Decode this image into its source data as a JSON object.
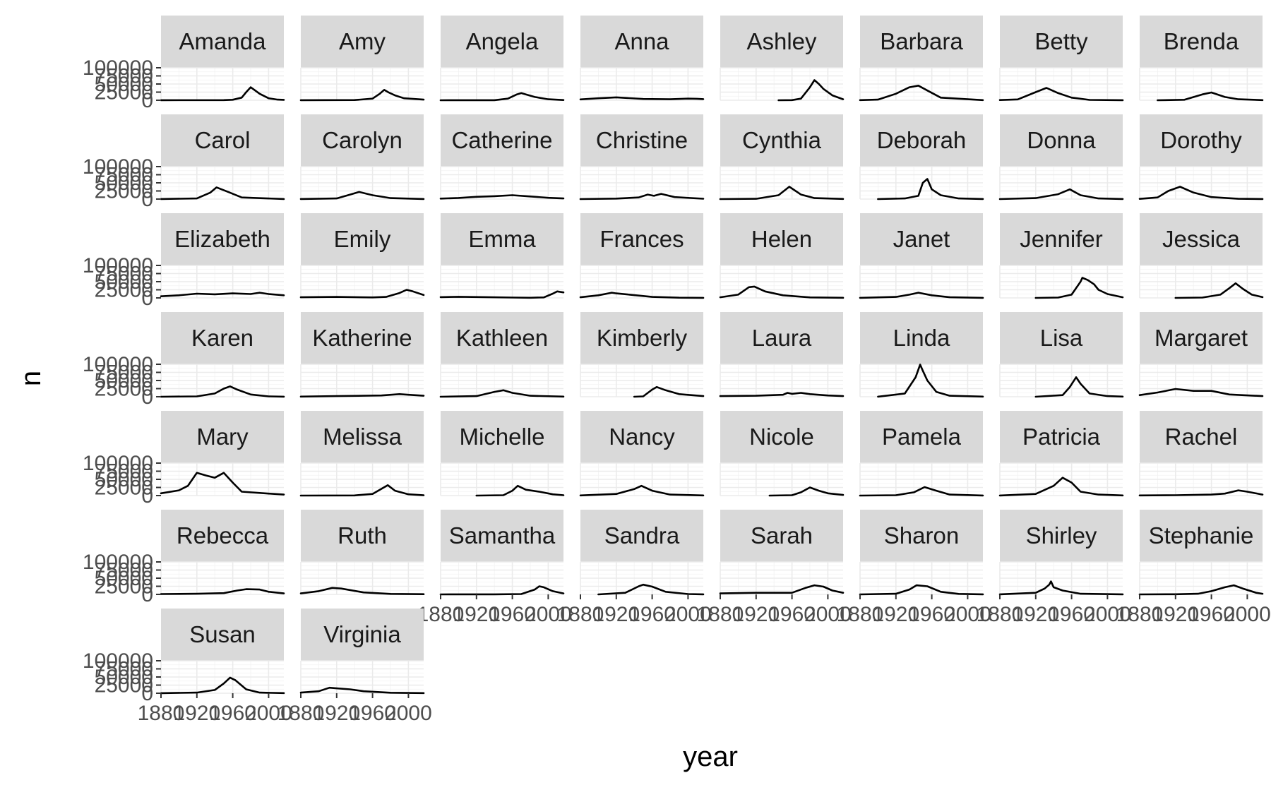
{
  "chart_data": {
    "type": "line",
    "layout": "facet_wrap",
    "ncol": 8,
    "xlabel": "year",
    "ylabel": "n",
    "xlim": [
      1880,
      2017
    ],
    "ylim": [
      0,
      100000
    ],
    "x_ticks": [
      1880,
      1920,
      1960,
      2000
    ],
    "x_tick_labels": [
      "1880",
      "1920",
      "1960",
      "2000"
    ],
    "y_ticks": [
      0,
      25000,
      50000,
      75000,
      100000
    ],
    "y_tick_labels": [
      "0",
      "25000",
      "50000",
      "75000",
      "100000"
    ],
    "grid": true,
    "legend": "none",
    "line_color": "#000000",
    "strip_fill": "#d9d9d9",
    "facets": [
      {
        "name": "Amanda",
        "x": [
          1880,
          1950,
          1960,
          1970,
          1975,
          1980,
          1985,
          1990,
          2000,
          2010,
          2017
        ],
        "y": [
          200,
          400,
          1500,
          8000,
          25000,
          40000,
          30000,
          20000,
          6000,
          2000,
          1200
        ]
      },
      {
        "name": "Amy",
        "x": [
          1880,
          1940,
          1960,
          1968,
          1973,
          1978,
          1985,
          1995,
          2017
        ],
        "y": [
          200,
          600,
          5000,
          20000,
          32000,
          24000,
          15000,
          6000,
          2000
        ]
      },
      {
        "name": "Angela",
        "x": [
          1880,
          1940,
          1955,
          1965,
          1970,
          1975,
          1985,
          2000,
          2017
        ],
        "y": [
          100,
          300,
          5000,
          18000,
          22000,
          18000,
          10000,
          3000,
          600
        ]
      },
      {
        "name": "Anna",
        "x": [
          1880,
          1900,
          1920,
          1950,
          1980,
          2000,
          2010,
          2017
        ],
        "y": [
          2500,
          6000,
          9000,
          4000,
          3000,
          5000,
          4500,
          3500
        ]
      },
      {
        "name": "Ashley",
        "x": [
          1945,
          1960,
          1970,
          1980,
          1985,
          1990,
          1995,
          2005,
          2017
        ],
        "y": [
          100,
          500,
          5000,
          40000,
          62000,
          50000,
          35000,
          15000,
          3000
        ]
      },
      {
        "name": "Barbara",
        "x": [
          1880,
          1900,
          1920,
          1935,
          1945,
          1955,
          1970,
          2017
        ],
        "y": [
          500,
          2000,
          20000,
          40000,
          45000,
          30000,
          8000,
          500
        ]
      },
      {
        "name": "Betty",
        "x": [
          1880,
          1900,
          1920,
          1932,
          1945,
          1960,
          1980,
          2017
        ],
        "y": [
          600,
          2500,
          25000,
          38000,
          22000,
          8000,
          1000,
          300
        ]
      },
      {
        "name": "Brenda",
        "x": [
          1900,
          1930,
          1950,
          1960,
          1975,
          1990,
          2017
        ],
        "y": [
          100,
          1500,
          18000,
          24000,
          10000,
          3000,
          400
        ]
      },
      {
        "name": "Carol",
        "x": [
          1880,
          1920,
          1935,
          1942,
          1955,
          1970,
          2017
        ],
        "y": [
          200,
          2000,
          20000,
          36000,
          22000,
          5000,
          300
        ]
      },
      {
        "name": "Carolyn",
        "x": [
          1880,
          1920,
          1935,
          1945,
          1960,
          1980,
          2017
        ],
        "y": [
          200,
          2000,
          14000,
          22000,
          12000,
          3000,
          300
        ]
      },
      {
        "name": "Catherine",
        "x": [
          1880,
          1900,
          1920,
          1940,
          1960,
          1980,
          2000,
          2017
        ],
        "y": [
          1500,
          3500,
          7000,
          9000,
          12000,
          8000,
          4000,
          2000
        ]
      },
      {
        "name": "Christine",
        "x": [
          1880,
          1920,
          1945,
          1955,
          1962,
          1970,
          1985,
          2017
        ],
        "y": [
          100,
          1500,
          5000,
          14000,
          10000,
          16000,
          6000,
          1000
        ]
      },
      {
        "name": "Cynthia",
        "x": [
          1880,
          1920,
          1945,
          1957,
          1970,
          1985,
          2017
        ],
        "y": [
          100,
          800,
          12000,
          38000,
          14000,
          3000,
          400
        ]
      },
      {
        "name": "Deborah",
        "x": [
          1900,
          1930,
          1945,
          1950,
          1955,
          1960,
          1970,
          1990,
          2017
        ],
        "y": [
          100,
          2000,
          10000,
          50000,
          62000,
          30000,
          12000,
          2000,
          300
        ]
      },
      {
        "name": "Donna",
        "x": [
          1880,
          1920,
          1945,
          1958,
          1970,
          1990,
          2017
        ],
        "y": [
          100,
          3000,
          15000,
          30000,
          12000,
          2000,
          200
        ]
      },
      {
        "name": "Dorothy",
        "x": [
          1880,
          1900,
          1912,
          1925,
          1940,
          1960,
          1990,
          2017
        ],
        "y": [
          600,
          5000,
          25000,
          38000,
          20000,
          6000,
          800,
          200
        ]
      },
      {
        "name": "Elizabeth",
        "x": [
          1880,
          1900,
          1920,
          1940,
          1960,
          1980,
          1990,
          2000,
          2017
        ],
        "y": [
          5000,
          8000,
          13000,
          11000,
          14000,
          12000,
          16000,
          12000,
          8000
        ]
      },
      {
        "name": "Emily",
        "x": [
          1880,
          1920,
          1960,
          1975,
          1990,
          1998,
          2005,
          2017
        ],
        "y": [
          2000,
          3000,
          1500,
          3000,
          15000,
          25000,
          20000,
          9000
        ]
      },
      {
        "name": "Emma",
        "x": [
          1880,
          1900,
          1930,
          1960,
          1980,
          1995,
          2005,
          2010,
          2017
        ],
        "y": [
          2500,
          3500,
          2500,
          1000,
          500,
          1500,
          13000,
          20000,
          17000
        ]
      },
      {
        "name": "Frances",
        "x": [
          1880,
          1900,
          1915,
          1920,
          1935,
          1960,
          1990,
          2017
        ],
        "y": [
          2000,
          8000,
          16000,
          14000,
          10000,
          3000,
          600,
          200
        ]
      },
      {
        "name": "Helen",
        "x": [
          1880,
          1900,
          1912,
          1918,
          1930,
          1950,
          1980,
          2017
        ],
        "y": [
          2000,
          10000,
          33000,
          35000,
          20000,
          8000,
          1500,
          400
        ]
      },
      {
        "name": "Janet",
        "x": [
          1880,
          1920,
          1935,
          1945,
          1960,
          1980,
          2017
        ],
        "y": [
          200,
          3000,
          10000,
          16000,
          8000,
          2000,
          300
        ]
      },
      {
        "name": "Jennifer",
        "x": [
          1920,
          1945,
          1960,
          1970,
          1972,
          1978,
          1985,
          1990,
          2000,
          2017
        ],
        "y": [
          100,
          1000,
          10000,
          50000,
          62000,
          55000,
          42000,
          25000,
          12000,
          2000
        ]
      },
      {
        "name": "Jessica",
        "x": [
          1920,
          1950,
          1970,
          1980,
          1987,
          1995,
          2005,
          2017
        ],
        "y": [
          100,
          1000,
          10000,
          30000,
          45000,
          28000,
          10000,
          2500
        ]
      },
      {
        "name": "Karen",
        "x": [
          1880,
          1920,
          1940,
          1950,
          1957,
          1965,
          1980,
          2000,
          2017
        ],
        "y": [
          100,
          1000,
          10000,
          25000,
          32000,
          22000,
          7000,
          1000,
          200
        ]
      },
      {
        "name": "Katherine",
        "x": [
          1880,
          1920,
          1950,
          1970,
          1990,
          2000,
          2017
        ],
        "y": [
          500,
          2000,
          3000,
          4000,
          8000,
          6000,
          3000
        ]
      },
      {
        "name": "Kathleen",
        "x": [
          1880,
          1920,
          1940,
          1950,
          1960,
          1980,
          2017
        ],
        "y": [
          100,
          2000,
          15000,
          20000,
          12000,
          3000,
          500
        ]
      },
      {
        "name": "Kimberly",
        "x": [
          1940,
          1950,
          1960,
          1965,
          1975,
          1990,
          2017
        ],
        "y": [
          100,
          1000,
          22000,
          30000,
          20000,
          8000,
          2000
        ]
      },
      {
        "name": "Laura",
        "x": [
          1880,
          1920,
          1950,
          1955,
          1960,
          1970,
          1980,
          2000,
          2017
        ],
        "y": [
          2000,
          3000,
          6000,
          12000,
          9000,
          12000,
          8000,
          4000,
          2000
        ]
      },
      {
        "name": "Linda",
        "x": [
          1900,
          1930,
          1942,
          1947,
          1950,
          1955,
          1965,
          1980,
          2017
        ],
        "y": [
          200,
          10000,
          60000,
          99000,
          80000,
          50000,
          15000,
          3000,
          500
        ]
      },
      {
        "name": "Lisa",
        "x": [
          1920,
          1950,
          1958,
          1965,
          1970,
          1980,
          2000,
          2017
        ],
        "y": [
          100,
          5000,
          30000,
          60000,
          40000,
          10000,
          2000,
          400
        ]
      },
      {
        "name": "Margaret",
        "x": [
          1880,
          1900,
          1920,
          1940,
          1960,
          1980,
          2017
        ],
        "y": [
          5000,
          13000,
          24000,
          18000,
          18000,
          7000,
          2000
        ]
      },
      {
        "name": "Mary",
        "x": [
          1880,
          1900,
          1910,
          1920,
          1930,
          1940,
          1950,
          1960,
          1970,
          2000,
          2017
        ],
        "y": [
          7000,
          16000,
          30000,
          70000,
          62000,
          55000,
          70000,
          40000,
          12000,
          6000,
          3000
        ]
      },
      {
        "name": "Melissa",
        "x": [
          1880,
          1940,
          1960,
          1977,
          1985,
          2000,
          2017
        ],
        "y": [
          100,
          500,
          5000,
          32000,
          15000,
          4000,
          800
        ]
      },
      {
        "name": "Michelle",
        "x": [
          1920,
          1950,
          1960,
          1966,
          1975,
          1990,
          2005,
          2017
        ],
        "y": [
          100,
          1000,
          15000,
          30000,
          18000,
          12000,
          4000,
          1000
        ]
      },
      {
        "name": "Nancy",
        "x": [
          1880,
          1920,
          1940,
          1948,
          1960,
          1980,
          2017
        ],
        "y": [
          500,
          5000,
          20000,
          30000,
          15000,
          3000,
          400
        ]
      },
      {
        "name": "Nicole",
        "x": [
          1935,
          1960,
          1970,
          1980,
          1990,
          2000,
          2017
        ],
        "y": [
          100,
          1000,
          10000,
          25000,
          15000,
          7000,
          2000
        ]
      },
      {
        "name": "Pamela",
        "x": [
          1880,
          1920,
          1940,
          1952,
          1965,
          1980,
          2017
        ],
        "y": [
          100,
          1000,
          10000,
          26000,
          15000,
          3000,
          300
        ]
      },
      {
        "name": "Patricia",
        "x": [
          1880,
          1920,
          1940,
          1950,
          1960,
          1970,
          1990,
          2017
        ],
        "y": [
          200,
          5000,
          30000,
          55000,
          40000,
          12000,
          3000,
          500
        ]
      },
      {
        "name": "Rachel",
        "x": [
          1880,
          1920,
          1960,
          1975,
          1990,
          2000,
          2017
        ],
        "y": [
          500,
          1000,
          3000,
          6000,
          16000,
          12000,
          3000
        ]
      },
      {
        "name": "Rebecca",
        "x": [
          1880,
          1920,
          1950,
          1965,
          1975,
          1990,
          2000,
          2017
        ],
        "y": [
          1000,
          2000,
          4000,
          12000,
          16000,
          15000,
          8000,
          3000
        ]
      },
      {
        "name": "Ruth",
        "x": [
          1880,
          1900,
          1915,
          1925,
          1950,
          1980,
          2017
        ],
        "y": [
          3000,
          10000,
          20000,
          18000,
          6000,
          1500,
          600
        ]
      },
      {
        "name": "Samantha",
        "x": [
          1880,
          1940,
          1970,
          1985,
          1990,
          1995,
          2005,
          2017
        ],
        "y": [
          100,
          200,
          1000,
          15000,
          25000,
          22000,
          10000,
          3000
        ]
      },
      {
        "name": "Sandra",
        "x": [
          1900,
          1930,
          1945,
          1950,
          1960,
          1975,
          2000,
          2017
        ],
        "y": [
          100,
          5000,
          25000,
          30000,
          24000,
          8000,
          1000,
          300
        ]
      },
      {
        "name": "Sarah",
        "x": [
          1880,
          1920,
          1960,
          1975,
          1985,
          1995,
          2005,
          2017
        ],
        "y": [
          3000,
          5000,
          5000,
          20000,
          28000,
          24000,
          12000,
          5000
        ]
      },
      {
        "name": "Sharon",
        "x": [
          1880,
          1920,
          1935,
          1943,
          1955,
          1970,
          1990,
          2017
        ],
        "y": [
          100,
          2000,
          15000,
          28000,
          25000,
          8000,
          1500,
          300
        ]
      },
      {
        "name": "Shirley",
        "x": [
          1880,
          1920,
          1930,
          1935,
          1937,
          1940,
          1950,
          1970,
          2017
        ],
        "y": [
          200,
          5000,
          18000,
          30000,
          40000,
          22000,
          12000,
          2000,
          300
        ]
      },
      {
        "name": "Stephanie",
        "x": [
          1880,
          1920,
          1945,
          1960,
          1975,
          1985,
          1995,
          2010,
          2017
        ],
        "y": [
          100,
          500,
          2000,
          10000,
          22000,
          28000,
          18000,
          5000,
          2000
        ]
      },
      {
        "name": "Susan",
        "x": [
          1880,
          1920,
          1940,
          1950,
          1957,
          1963,
          1975,
          1990,
          2017
        ],
        "y": [
          200,
          2000,
          10000,
          30000,
          48000,
          40000,
          12000,
          2000,
          400
        ]
      },
      {
        "name": "Virginia",
        "x": [
          1880,
          1900,
          1912,
          1920,
          1935,
          1950,
          1980,
          2017
        ],
        "y": [
          2000,
          6000,
          17000,
          15000,
          12000,
          6000,
          1500,
          500
        ]
      }
    ]
  }
}
